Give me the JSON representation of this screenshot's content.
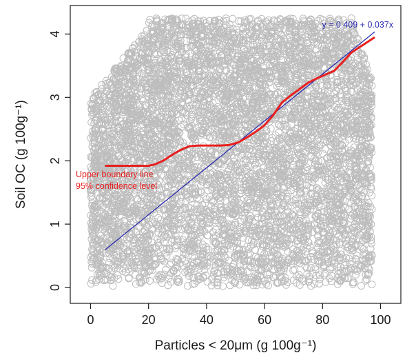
{
  "chart_data": {
    "type": "scatter",
    "xlabel": "Particles < 20μm (g 100g⁻¹)",
    "ylabel": "Soil OC (g 100g⁻¹)",
    "xlim": [
      -7,
      107
    ],
    "ylim": [
      -0.25,
      4.45
    ],
    "x_ticks": [
      "0",
      "20",
      "40",
      "60",
      "80",
      "100"
    ],
    "y_ticks": [
      "0",
      "1",
      "2",
      "3",
      "4"
    ],
    "grid": false,
    "point_color": "#bdbdbd",
    "point_style": "open circle",
    "regression": {
      "label": "y = 0.409 + 0.037x",
      "intercept": 0.409,
      "slope": 0.037,
      "x_range": [
        5,
        98
      ],
      "color": "#2b2bb0"
    },
    "boundary_line": {
      "labels": [
        "Upper boundary line",
        "95% confidence level"
      ],
      "color": "#e8201f",
      "points": [
        [
          5,
          1.92
        ],
        [
          10,
          1.92
        ],
        [
          15,
          1.92
        ],
        [
          20,
          1.92
        ],
        [
          22,
          1.94
        ],
        [
          25,
          2.0
        ],
        [
          28,
          2.09
        ],
        [
          31,
          2.17
        ],
        [
          34,
          2.23
        ],
        [
          37,
          2.24
        ],
        [
          40,
          2.24
        ],
        [
          45,
          2.24
        ],
        [
          48,
          2.25
        ],
        [
          51,
          2.29
        ],
        [
          54,
          2.37
        ],
        [
          57,
          2.46
        ],
        [
          60,
          2.56
        ],
        [
          63,
          2.72
        ],
        [
          66,
          2.92
        ],
        [
          69,
          3.03
        ],
        [
          72,
          3.13
        ],
        [
          75,
          3.23
        ],
        [
          78,
          3.3
        ],
        [
          81,
          3.36
        ],
        [
          84,
          3.42
        ],
        [
          87,
          3.56
        ],
        [
          90,
          3.71
        ],
        [
          93,
          3.8
        ],
        [
          96,
          3.89
        ],
        [
          98,
          3.95
        ]
      ]
    }
  }
}
